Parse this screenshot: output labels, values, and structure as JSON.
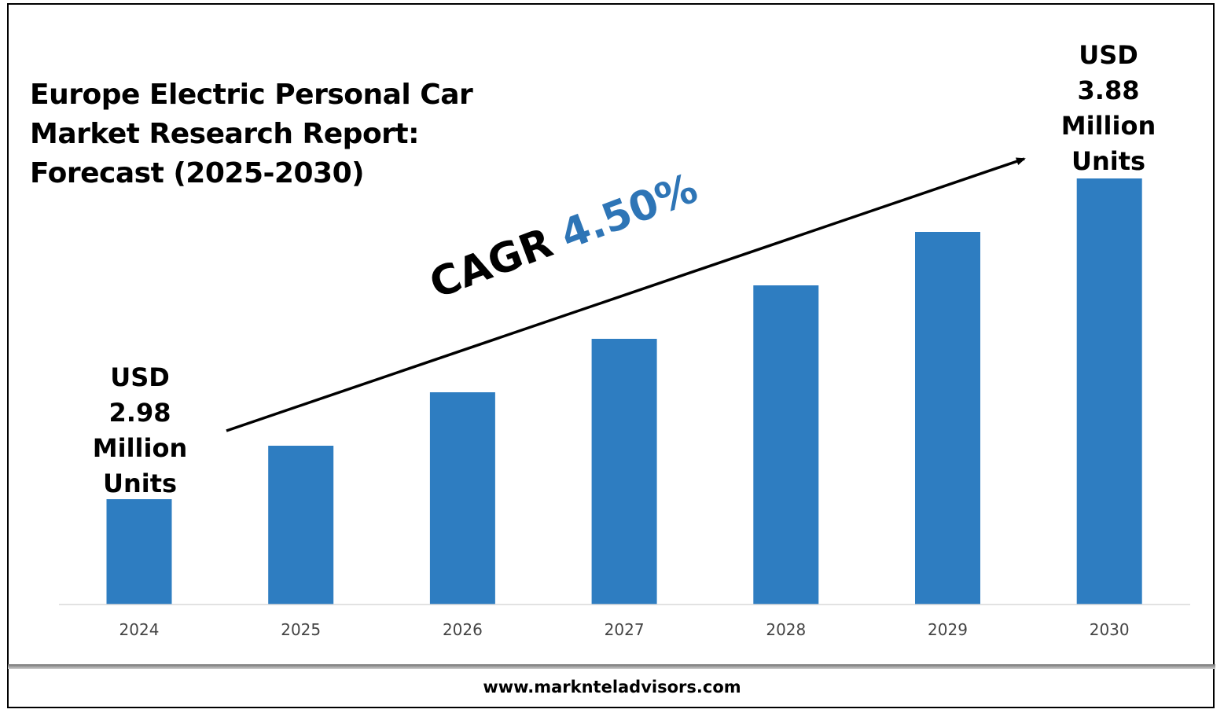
{
  "title_lines": [
    "Europe Electric Personal Car",
    "Market Research Report:",
    "Forecast (2025-2030)"
  ],
  "callouts": {
    "start": [
      "USD",
      "2.98",
      "Million",
      "Units"
    ],
    "end": [
      "USD",
      "3.88",
      "Million",
      "Units"
    ]
  },
  "cagr": {
    "label": "CAGR",
    "value": "4.50%"
  },
  "footer": {
    "website": "www.marknteladvisors.com"
  },
  "colors": {
    "bar": "#2e7dc1",
    "accent": "#2e75b6",
    "axis": "#d9d9d9"
  },
  "chart_data": {
    "type": "bar",
    "categories": [
      "2024",
      "2025",
      "2026",
      "2027",
      "2028",
      "2029",
      "2030"
    ],
    "series": [
      {
        "values": [
          2.98,
          3.13,
          3.28,
          3.43,
          3.58,
          3.73,
          3.88
        ]
      }
    ],
    "title": "Europe Electric Personal Car Market Research Report: Forecast (2025-2030)",
    "xlabel": "",
    "ylabel": "",
    "grid": false,
    "legend": "none"
  }
}
